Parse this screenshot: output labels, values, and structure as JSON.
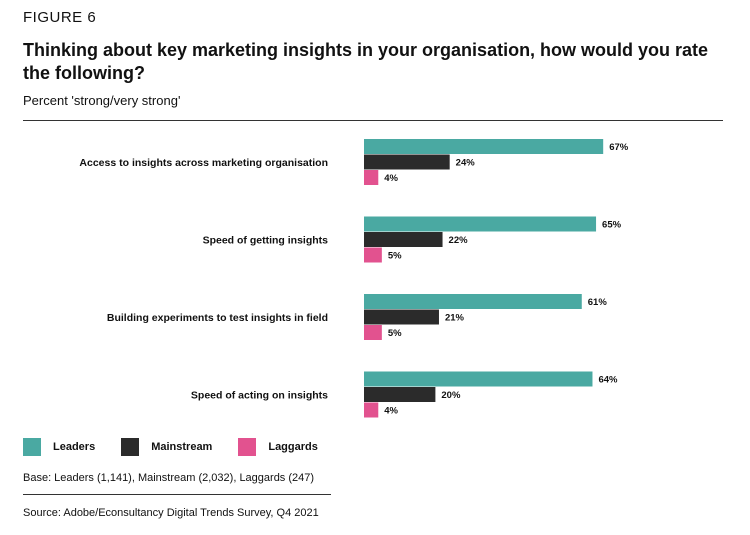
{
  "figure_label": "FIGURE 6",
  "chart_data": {
    "type": "bar",
    "orientation": "horizontal",
    "title": "Thinking about key marketing insights in your organisation, how would you rate the following?",
    "subtitle": "Percent 'strong/very strong'",
    "categories": [
      "Access to insights across marketing organisation",
      "Speed of getting insights",
      "Building experiments to test insights in field",
      "Speed of acting on insights"
    ],
    "series": [
      {
        "name": "Leaders",
        "color": "#4aa9a2",
        "values": [
          67,
          65,
          61,
          64
        ]
      },
      {
        "name": "Mainstream",
        "color": "#2b2b2b",
        "values": [
          24,
          22,
          21,
          20
        ]
      },
      {
        "name": "Laggards",
        "color": "#e2528f",
        "values": [
          4,
          5,
          5,
          4
        ]
      }
    ],
    "value_suffix": "%",
    "xlim": [
      0,
      100
    ],
    "grid": false,
    "legend": "bottom-left"
  },
  "base_note": "Base: Leaders (1,141), Mainstream (2,032), Laggards (247)",
  "source_note": "Source: Adobe/Econsultancy Digital Trends Survey, Q4 2021"
}
